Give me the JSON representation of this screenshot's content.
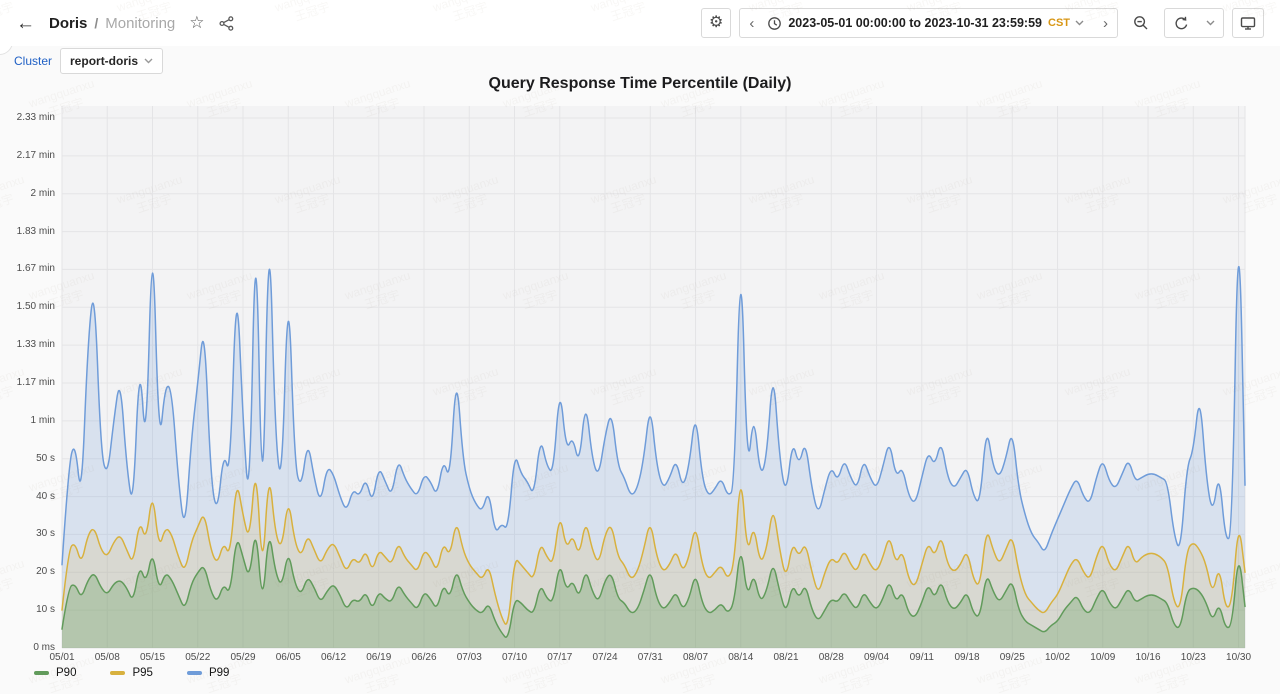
{
  "header": {
    "title": "Doris",
    "separator": "/",
    "subtitle": "Monitoring",
    "icons": [
      "back-icon",
      "star-icon",
      "share-icon",
      "gear-icon",
      "clock-icon",
      "zoom-out-icon",
      "refresh-icon",
      "display-icon"
    ],
    "toolbar": {
      "prev_label": "‹",
      "next_label": "›",
      "time_range": "2023-05-01 00:00:00 to 2023-10-31 23:59:59",
      "timezone": "CST"
    }
  },
  "filters": {
    "cluster_label": "Cluster",
    "cluster_value": "report-doris"
  },
  "watermark": {
    "line1": "wangquanxu",
    "line2": "王冠宇"
  },
  "colors": {
    "p90": "#619b5b",
    "p95": "#d8b13e",
    "p99": "#6f9cd9",
    "grid": "#e4e4e6",
    "plot_bg": "#f3f3f4",
    "timezone_accent": "#d89614",
    "link_blue": "#2161c5"
  },
  "chart_data": {
    "type": "area",
    "title": "Query Response Time Percentile (Daily)",
    "unit": "seconds",
    "grid": true,
    "legend_position": "bottom-left",
    "ylim": [
      0,
      140
    ],
    "x_range": [
      "2023-05-01 00:00:00",
      "2023-10-31 23:59:59"
    ],
    "x_tick_step_days": 7,
    "x_tick_labels": [
      "05/01",
      "05/08",
      "05/15",
      "05/22",
      "05/29",
      "06/05",
      "06/12",
      "06/19",
      "06/26",
      "07/03",
      "07/10",
      "07/17",
      "07/24",
      "07/31",
      "08/07",
      "08/14",
      "08/21",
      "08/28",
      "09/04",
      "09/11",
      "09/18",
      "09/25",
      "10/02",
      "10/09",
      "10/16",
      "10/23",
      "10/30"
    ],
    "y_tick_values": [
      0,
      10,
      20,
      30,
      40,
      50,
      60,
      70,
      80,
      90,
      100,
      110,
      120,
      130,
      140
    ],
    "y_tick_labels": [
      "0 ms",
      "10 s",
      "20 s",
      "30 s",
      "40 s",
      "50 s",
      "1 min",
      "1.17 min",
      "1.33 min",
      "1.50 min",
      "1.67 min",
      "1.83 min",
      "2 min",
      "2.17 min",
      "2.33 min"
    ],
    "series": [
      {
        "name": "P90",
        "color": "#619b5b",
        "fill_opacity": 0.3,
        "values": [
          5,
          16,
          17,
          13,
          18,
          20,
          16,
          14,
          17,
          18,
          16,
          12,
          22,
          17,
          26,
          15,
          20,
          18,
          14,
          10,
          17,
          20,
          22,
          15,
          12,
          17,
          14,
          30,
          24,
          18,
          33,
          10,
          32,
          20,
          16,
          26,
          17,
          14,
          19,
          16,
          12,
          15,
          17,
          14,
          10,
          13,
          12,
          15,
          10,
          15,
          13,
          12,
          17,
          14,
          12,
          10,
          15,
          13,
          10,
          17,
          13,
          21,
          15,
          12,
          10,
          9,
          12,
          7,
          4,
          2,
          13,
          12,
          10,
          9,
          17,
          13,
          12,
          23,
          15,
          18,
          13,
          21,
          15,
          12,
          18,
          20,
          13,
          12,
          9,
          10,
          15,
          21,
          13,
          10,
          12,
          15,
          10,
          13,
          20,
          12,
          9,
          10,
          12,
          9,
          12,
          28,
          13,
          20,
          12,
          15,
          23,
          15,
          9,
          17,
          13,
          17,
          10,
          7,
          10,
          13,
          12,
          15,
          12,
          10,
          15,
          12,
          10,
          13,
          18,
          12,
          15,
          9,
          8,
          12,
          17,
          13,
          18,
          12,
          10,
          12,
          15,
          9,
          8,
          20,
          15,
          12,
          15,
          18,
          10,
          7,
          6,
          5,
          4,
          6,
          7,
          10,
          12,
          14,
          10,
          9,
          13,
          16,
          12,
          10,
          13,
          16,
          12,
          13,
          14,
          14,
          13,
          12,
          6,
          5,
          15,
          16,
          15,
          12,
          7,
          12,
          5,
          6,
          26,
          11
        ]
      },
      {
        "name": "P95",
        "color": "#d8b13e",
        "fill_opacity": 0.16,
        "values": [
          10,
          26,
          28,
          22,
          30,
          32,
          26,
          24,
          28,
          30,
          26,
          22,
          34,
          28,
          42,
          26,
          32,
          30,
          24,
          20,
          28,
          32,
          36,
          26,
          22,
          28,
          24,
          45,
          35,
          28,
          50,
          18,
          48,
          30,
          26,
          40,
          28,
          24,
          30,
          26,
          22,
          26,
          28,
          24,
          20,
          24,
          22,
          26,
          20,
          26,
          24,
          22,
          28,
          24,
          22,
          20,
          26,
          24,
          20,
          28,
          24,
          34,
          26,
          22,
          20,
          18,
          22,
          14,
          8,
          5,
          24,
          22,
          20,
          18,
          28,
          24,
          22,
          36,
          26,
          30,
          24,
          34,
          26,
          22,
          30,
          33,
          24,
          22,
          18,
          20,
          26,
          34,
          24,
          20,
          22,
          26,
          20,
          24,
          33,
          22,
          18,
          20,
          22,
          18,
          22,
          48,
          24,
          33,
          22,
          26,
          38,
          26,
          18,
          28,
          24,
          28,
          20,
          14,
          20,
          24,
          22,
          26,
          22,
          20,
          26,
          22,
          20,
          24,
          30,
          22,
          26,
          18,
          16,
          22,
          28,
          24,
          30,
          22,
          20,
          22,
          26,
          18,
          16,
          32,
          26,
          22,
          26,
          30,
          20,
          14,
          12,
          10,
          9,
          12,
          14,
          18,
          22,
          24,
          20,
          18,
          24,
          28,
          22,
          20,
          24,
          28,
          22,
          24,
          25,
          25,
          24,
          22,
          12,
          10,
          26,
          28,
          26,
          22,
          14,
          22,
          10,
          12,
          34,
          20
        ]
      },
      {
        "name": "P99",
        "color": "#6f9cd9",
        "fill_opacity": 0.2,
        "values": [
          22,
          48,
          55,
          38,
          81,
          97,
          52,
          45,
          60,
          72,
          48,
          36,
          78,
          50,
          115,
          52,
          70,
          68,
          44,
          30,
          55,
          70,
          87,
          45,
          35,
          52,
          45,
          100,
          60,
          35,
          120,
          26,
          119,
          55,
          42,
          100,
          48,
          42,
          55,
          45,
          38,
          48,
          46,
          40,
          36,
          42,
          40,
          45,
          38,
          48,
          44,
          40,
          50,
          45,
          42,
          40,
          46,
          44,
          40,
          50,
          44,
          74,
          50,
          42,
          38,
          36,
          42,
          30,
          33,
          31,
          52,
          46,
          44,
          40,
          56,
          48,
          46,
          70,
          52,
          56,
          48,
          66,
          50,
          45,
          56,
          63,
          48,
          45,
          40,
          42,
          50,
          65,
          48,
          42,
          45,
          50,
          42,
          48,
          63,
          45,
          40,
          42,
          45,
          40,
          42,
          110,
          45,
          63,
          45,
          50,
          75,
          50,
          40,
          55,
          48,
          55,
          42,
          35,
          42,
          48,
          44,
          50,
          45,
          42,
          50,
          45,
          42,
          48,
          55,
          45,
          48,
          40,
          38,
          45,
          52,
          48,
          55,
          45,
          42,
          45,
          48,
          40,
          38,
          59,
          48,
          45,
          50,
          58,
          42,
          35,
          30,
          28,
          25,
          30,
          34,
          38,
          42,
          45,
          40,
          38,
          45,
          50,
          44,
          42,
          46,
          50,
          44,
          45,
          46,
          46,
          45,
          44,
          30,
          25,
          48,
          52,
          68,
          45,
          35,
          47,
          28,
          30,
          122,
          43
        ]
      }
    ]
  }
}
